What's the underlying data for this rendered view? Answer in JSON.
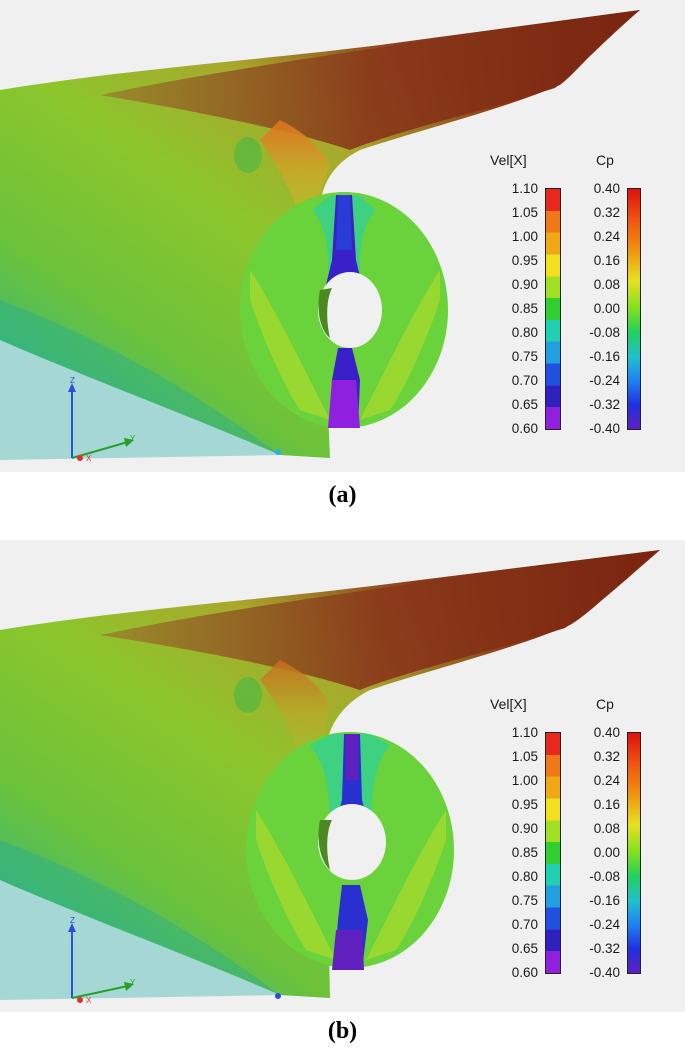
{
  "panels": [
    {
      "caption": "(a)",
      "vel_title": "Vel[X]",
      "cp_title": "Cp",
      "vel_ticks": [
        "1.10",
        "1.05",
        "1.00",
        "0.95",
        "0.90",
        "0.85",
        "0.80",
        "0.75",
        "0.70",
        "0.65",
        "0.60"
      ],
      "cp_ticks": [
        "0.40",
        "0.32",
        "0.24",
        "0.16",
        "0.08",
        "0.00",
        "-0.08",
        "-0.16",
        "-0.24",
        "-0.32",
        "-0.40"
      ],
      "axis": {
        "z": "Z",
        "y": "Y",
        "x": "X"
      }
    },
    {
      "caption": "(b)",
      "vel_title": "Vel[X]",
      "cp_title": "Cp",
      "vel_ticks": [
        "1.10",
        "1.05",
        "1.00",
        "0.95",
        "0.90",
        "0.85",
        "0.80",
        "0.75",
        "0.70",
        "0.65",
        "0.60"
      ],
      "cp_ticks": [
        "0.40",
        "0.32",
        "0.24",
        "0.16",
        "0.08",
        "0.00",
        "-0.08",
        "-0.16",
        "-0.24",
        "-0.32",
        "-0.40"
      ],
      "axis": {
        "z": "Z",
        "y": "Y",
        "x": "X"
      }
    }
  ],
  "colors": {
    "vel_bands": [
      "#e8281e",
      "#f07818",
      "#f0a818",
      "#f0e020",
      "#a0e020",
      "#30d030",
      "#20d0b0",
      "#20a0e0",
      "#2050e0",
      "#3020c0",
      "#9020e0"
    ],
    "background": "#f0f0f0"
  }
}
